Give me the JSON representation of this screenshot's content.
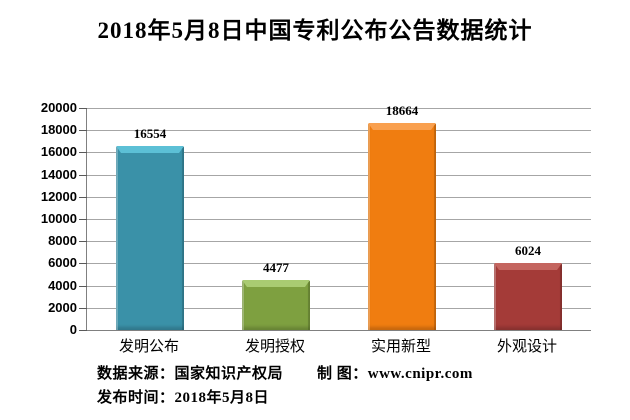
{
  "page": {
    "title": "2018年5月8日中国专利公布公告数据统计"
  },
  "chart_data": {
    "type": "bar",
    "title": "2018年5月8日中国专利公布公告数据统计",
    "categories": [
      "发明公布",
      "发明授权",
      "实用新型",
      "外观设计"
    ],
    "values": [
      16554,
      4477,
      18664,
      6024
    ],
    "data_labels": [
      "16554",
      "4477",
      "18664",
      "6024"
    ],
    "bar_colors": [
      "#3A91A8",
      "#7EA040",
      "#F07D10",
      "#A43B38"
    ],
    "bar_cap_colors": [
      "#5CC0D6",
      "#A9CB72",
      "#F9A04F",
      "#C4655F"
    ],
    "xlabel": "",
    "ylabel": "",
    "ylim": [
      0,
      20000
    ],
    "ytick_step": 2000,
    "ytick_labels": [
      "0",
      "2000",
      "4000",
      "6000",
      "8000",
      "10000",
      "12000",
      "14000",
      "16000",
      "18000",
      "20000"
    ],
    "grid": true,
    "legend": false,
    "gridline_color": "#A6A6A6",
    "axis_color": "#808080",
    "text_color": "#000000",
    "background_color": "#FFFFFF"
  },
  "footer": {
    "source": "数据来源：国家知识产权局",
    "credit": "制 图：www.cnipr.com",
    "publish": "发布时间：2018年5月8日"
  }
}
